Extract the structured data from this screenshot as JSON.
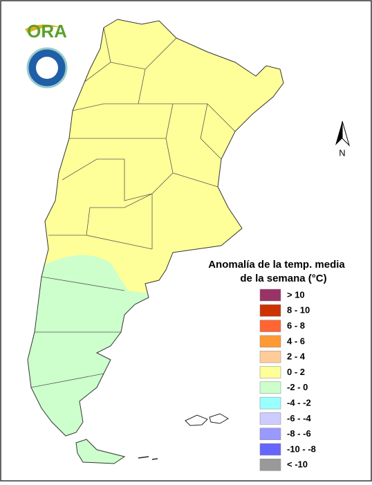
{
  "logo": {
    "text": "ORA"
  },
  "compass": {
    "label": "N"
  },
  "legend": {
    "title": [
      "Anomalía de la temp. media",
      "de la semana (°C)"
    ],
    "items": [
      {
        "label": "> 10",
        "color": "#993366"
      },
      {
        "label": "8 - 10",
        "color": "#cc3300"
      },
      {
        "label": "6 - 8",
        "color": "#ff6633"
      },
      {
        "label": "4 - 6",
        "color": "#ff9933"
      },
      {
        "label": "2 - 4",
        "color": "#ffcc99"
      },
      {
        "label": "0 - 2",
        "color": "#ffff99"
      },
      {
        "label": "-2 - 0",
        "color": "#ccffcc"
      },
      {
        "label": "-4 - -2",
        "color": "#99ffff"
      },
      {
        "label": "-6 - -4",
        "color": "#ccccff"
      },
      {
        "label": "-8 - -6",
        "color": "#9999ff"
      },
      {
        "label": "-10 - -8",
        "color": "#6666ff"
      },
      {
        "label": "< -10",
        "color": "#999999"
      }
    ]
  }
}
